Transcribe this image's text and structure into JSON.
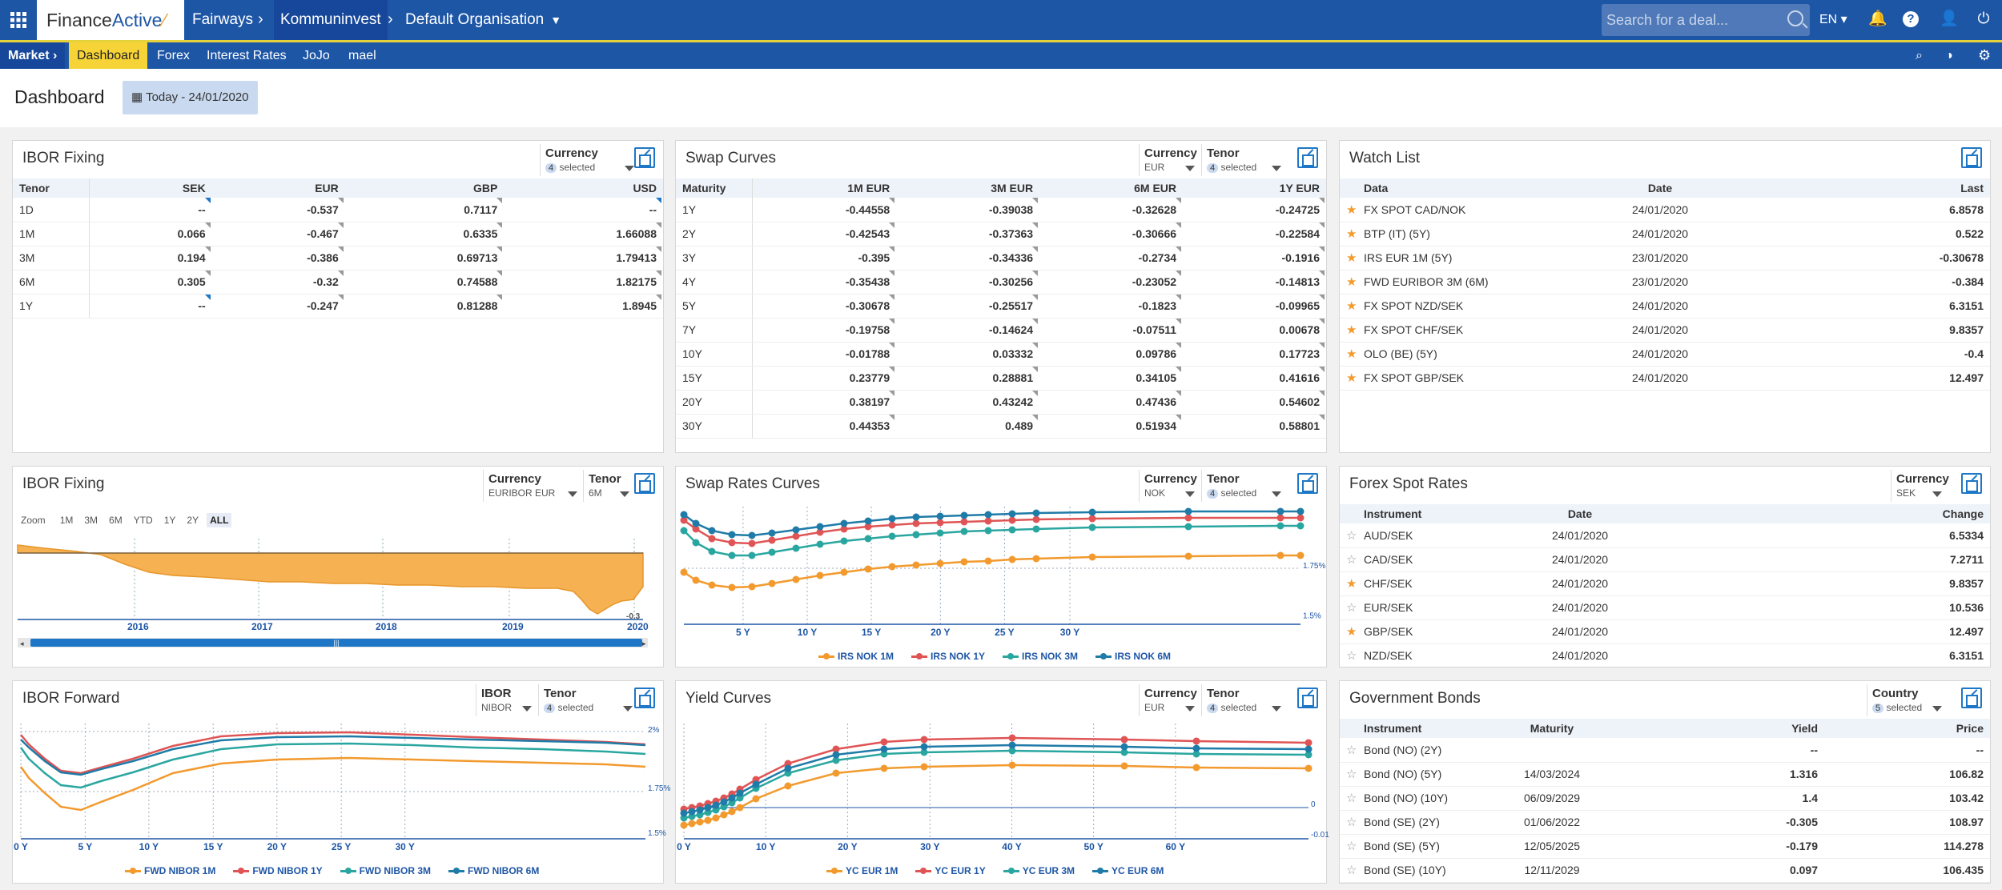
{
  "app": {
    "logo_finance": "Finance",
    "logo_active": "Active",
    "breadcrumb": [
      "Fairways",
      "Kommuninvest",
      "Default Organisation"
    ],
    "search_placeholder": "Search for a deal...",
    "lang": "EN"
  },
  "subnav": {
    "market": "Market",
    "items": [
      "Dashboard",
      "Forex",
      "Interest Rates",
      "JoJo",
      "mael"
    ]
  },
  "page": {
    "title": "Dashboard",
    "date": "Today - 24/01/2020"
  },
  "ibor_fixing": {
    "title": "IBOR Fixing",
    "filter_label": "Currency",
    "filter_count": "4",
    "filter_text": "selected",
    "headers": [
      "Tenor",
      "SEK",
      "EUR",
      "GBP",
      "USD"
    ],
    "rows": [
      [
        "1D",
        "--",
        "-0.537",
        "0.7117",
        "--"
      ],
      [
        "1M",
        "0.066",
        "-0.467",
        "0.6335",
        "1.66088"
      ],
      [
        "3M",
        "0.194",
        "-0.386",
        "0.69713",
        "1.79413"
      ],
      [
        "6M",
        "0.305",
        "-0.32",
        "0.74588",
        "1.82175"
      ],
      [
        "1Y",
        "--",
        "-0.247",
        "0.81288",
        "1.8945"
      ]
    ]
  },
  "swap_curves": {
    "title": "Swap Curves",
    "f1_label": "Currency",
    "f1_value": "EUR",
    "f2_label": "Tenor",
    "f2_count": "4",
    "f2_text": "selected",
    "headers": [
      "Maturity",
      "1M EUR",
      "3M EUR",
      "6M EUR",
      "1Y EUR"
    ],
    "rows": [
      [
        "1Y",
        "-0.44558",
        "-0.39038",
        "-0.32628",
        "-0.24725"
      ],
      [
        "2Y",
        "-0.42543",
        "-0.37363",
        "-0.30666",
        "-0.22584"
      ],
      [
        "3Y",
        "-0.395",
        "-0.34336",
        "-0.2734",
        "-0.1916"
      ],
      [
        "4Y",
        "-0.35438",
        "-0.30256",
        "-0.23052",
        "-0.14813"
      ],
      [
        "5Y",
        "-0.30678",
        "-0.25517",
        "-0.1823",
        "-0.09965"
      ],
      [
        "7Y",
        "-0.19758",
        "-0.14624",
        "-0.07511",
        "0.00678"
      ],
      [
        "10Y",
        "-0.01788",
        "0.03332",
        "0.09786",
        "0.17723"
      ],
      [
        "15Y",
        "0.23779",
        "0.28881",
        "0.34105",
        "0.41616"
      ],
      [
        "20Y",
        "0.38197",
        "0.43242",
        "0.47436",
        "0.54602"
      ],
      [
        "30Y",
        "0.44353",
        "0.489",
        "0.51934",
        "0.58801"
      ]
    ]
  },
  "watch_list": {
    "title": "Watch List",
    "headers": [
      "Data",
      "Date",
      "Last"
    ],
    "rows": [
      [
        "FX SPOT CAD/NOK",
        "24/01/2020",
        "6.8578"
      ],
      [
        "BTP (IT) (5Y)",
        "24/01/2020",
        "0.522"
      ],
      [
        "IRS EUR 1M (5Y)",
        "23/01/2020",
        "-0.30678"
      ],
      [
        "FWD EURIBOR 3M (6M)",
        "23/01/2020",
        "-0.384"
      ],
      [
        "FX SPOT NZD/SEK",
        "24/01/2020",
        "6.3151"
      ],
      [
        "FX SPOT CHF/SEK",
        "24/01/2020",
        "9.8357"
      ],
      [
        "OLO (BE) (5Y)",
        "24/01/2020",
        "-0.4"
      ],
      [
        "FX SPOT GBP/SEK",
        "24/01/2020",
        "12.497"
      ]
    ]
  },
  "ibor_fixing_chart": {
    "title": "IBOR Fixing",
    "f1_label": "Currency",
    "f1_value": "EURIBOR EUR",
    "f2_label": "Tenor",
    "f2_value": "6M",
    "zoom_label": "Zoom",
    "zoom": [
      "1M",
      "3M",
      "6M",
      "YTD",
      "1Y",
      "2Y",
      "ALL"
    ],
    "years": [
      "2016",
      "2017",
      "2018",
      "2019",
      "2020"
    ],
    "ylabel": "-0.3"
  },
  "swap_rates_curves": {
    "title": "Swap Rates Curves",
    "f1_label": "Currency",
    "f1_value": "NOK",
    "f2_label": "Tenor",
    "f2_count": "4",
    "f2_text": "selected",
    "xticks": [
      "5 Y",
      "10 Y",
      "15 Y",
      "20 Y",
      "25 Y",
      "30 Y"
    ],
    "ylabels": [
      "1.75%",
      "1.5%"
    ],
    "legend": [
      "IRS NOK 1M",
      "IRS NOK 1Y",
      "IRS NOK 3M",
      "IRS NOK 6M"
    ]
  },
  "forex_spot": {
    "title": "Forex Spot Rates",
    "f1_label": "Currency",
    "f1_value": "SEK",
    "headers": [
      "Instrument",
      "Date",
      "Change"
    ],
    "rows": [
      [
        "AUD/SEK",
        "24/01/2020",
        "6.5334"
      ],
      [
        "CAD/SEK",
        "24/01/2020",
        "7.2711"
      ],
      [
        "CHF/SEK",
        "24/01/2020",
        "9.8357"
      ],
      [
        "EUR/SEK",
        "24/01/2020",
        "10.536"
      ],
      [
        "GBP/SEK",
        "24/01/2020",
        "12.497"
      ],
      [
        "NZD/SEK",
        "24/01/2020",
        "6.3151"
      ]
    ],
    "starred": [
      false,
      false,
      true,
      false,
      true,
      false
    ]
  },
  "ibor_forward": {
    "title": "IBOR Forward",
    "f1_label": "IBOR",
    "f1_value": "NIBOR",
    "f2_label": "Tenor",
    "f2_count": "4",
    "f2_text": "selected",
    "xticks": [
      "0 Y",
      "5 Y",
      "10 Y",
      "15 Y",
      "20 Y",
      "25 Y",
      "30 Y"
    ],
    "ylabels": [
      "2%",
      "1.75%",
      "1.5%"
    ],
    "legend": [
      "FWD NIBOR 1M",
      "FWD NIBOR 1Y",
      "FWD NIBOR 3M",
      "FWD NIBOR 6M"
    ]
  },
  "yield_curves": {
    "title": "Yield Curves",
    "f1_label": "Currency",
    "f1_value": "EUR",
    "f2_label": "Tenor",
    "f2_count": "4",
    "f2_text": "selected",
    "xticks": [
      "0 Y",
      "10 Y",
      "20 Y",
      "30 Y",
      "40 Y",
      "50 Y",
      "60 Y"
    ],
    "ylabels": [
      "0",
      "-0.01"
    ],
    "legend": [
      "YC EUR 1M",
      "YC EUR 1Y",
      "YC EUR 3M",
      "YC EUR 6M"
    ]
  },
  "gov_bonds": {
    "title": "Government Bonds",
    "f1_label": "Country",
    "f1_count": "5",
    "f1_text": "selected",
    "headers": [
      "Instrument",
      "Maturity",
      "Yield",
      "Price"
    ],
    "rows": [
      [
        "Bond (NO) (2Y)",
        "",
        "--",
        "--"
      ],
      [
        "Bond (NO) (5Y)",
        "14/03/2024",
        "1.316",
        "106.82"
      ],
      [
        "Bond (NO) (10Y)",
        "06/09/2029",
        "1.4",
        "103.42"
      ],
      [
        "Bond (SE) (2Y)",
        "01/06/2022",
        "-0.305",
        "108.97"
      ],
      [
        "Bond (SE) (5Y)",
        "12/05/2025",
        "-0.179",
        "114.278"
      ],
      [
        "Bond (SE) (10Y)",
        "12/11/2029",
        "0.097",
        "106.435"
      ]
    ]
  },
  "colors": {
    "orange": "#f29a2e",
    "red": "#e05455",
    "teal": "#2aa6a0",
    "blue": "#1f7ba8"
  }
}
